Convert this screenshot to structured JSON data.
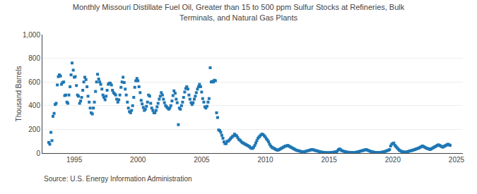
{
  "chart_data": {
    "type": "scatter",
    "title": "Monthly Missouri Distillate Fuel Oil, Greater than 15 to 500 ppm Sulfur Stocks at Refineries, Bulk\nTerminals, and Natural Gas Plants",
    "ylabel": "Thousand Barrels",
    "annotations": [
      "Source: U.S. Energy Information Administration"
    ],
    "marker": "square",
    "grid": "y",
    "xlim": [
      1992.5,
      2025.5
    ],
    "xticks": [
      1995,
      2000,
      2005,
      2010,
      2015,
      2020,
      2025
    ],
    "ylim": [
      0,
      1000
    ],
    "yticks": [
      0,
      200,
      400,
      600,
      800,
      {
        "value": 1000,
        "label": "1,000"
      }
    ],
    "x": [
      1993.0,
      1993.08,
      1993.17,
      1993.25,
      1993.33,
      1993.42,
      1993.5,
      1993.58,
      1993.67,
      1993.75,
      1993.83,
      1993.92,
      1994.0,
      1994.08,
      1994.17,
      1994.25,
      1994.33,
      1994.42,
      1994.5,
      1994.58,
      1994.67,
      1994.75,
      1994.83,
      1994.92,
      1995.0,
      1995.08,
      1995.17,
      1995.25,
      1995.33,
      1995.42,
      1995.5,
      1995.58,
      1995.67,
      1995.75,
      1995.83,
      1995.92,
      1996.0,
      1996.08,
      1996.17,
      1996.25,
      1996.33,
      1996.42,
      1996.5,
      1996.58,
      1996.67,
      1996.75,
      1996.83,
      1996.92,
      1997.0,
      1997.08,
      1997.17,
      1997.25,
      1997.33,
      1997.42,
      1997.5,
      1997.58,
      1997.67,
      1997.75,
      1997.83,
      1997.92,
      1998.0,
      1998.08,
      1998.17,
      1998.25,
      1998.33,
      1998.42,
      1998.5,
      1998.58,
      1998.67,
      1998.75,
      1998.83,
      1998.92,
      1999.0,
      1999.08,
      1999.17,
      1999.25,
      1999.33,
      1999.42,
      1999.5,
      1999.58,
      1999.67,
      1999.75,
      1999.83,
      1999.92,
      2000.0,
      2000.08,
      2000.17,
      2000.25,
      2000.33,
      2000.42,
      2000.5,
      2000.58,
      2000.67,
      2000.75,
      2000.83,
      2000.92,
      2001.0,
      2001.08,
      2001.17,
      2001.25,
      2001.33,
      2001.42,
      2001.5,
      2001.58,
      2001.67,
      2001.75,
      2001.83,
      2001.92,
      2002.0,
      2002.08,
      2002.17,
      2002.25,
      2002.33,
      2002.42,
      2002.5,
      2002.58,
      2002.67,
      2002.75,
      2002.83,
      2002.92,
      2003.0,
      2003.08,
      2003.17,
      2003.25,
      2003.33,
      2003.42,
      2003.5,
      2003.58,
      2003.67,
      2003.75,
      2003.83,
      2003.92,
      2004.0,
      2004.08,
      2004.17,
      2004.25,
      2004.33,
      2004.42,
      2004.5,
      2004.58,
      2004.67,
      2004.75,
      2004.83,
      2004.92,
      2005.0,
      2005.08,
      2005.17,
      2005.25,
      2005.33,
      2005.42,
      2005.5,
      2005.58,
      2005.67,
      2005.75,
      2005.83,
      2005.92,
      2006.0,
      2006.08,
      2006.17,
      2006.25,
      2006.33,
      2006.42,
      2006.5,
      2006.58,
      2006.67,
      2006.75,
      2006.83,
      2006.92,
      2007.0,
      2007.08,
      2007.17,
      2007.25,
      2007.33,
      2007.42,
      2007.5,
      2007.58,
      2007.67,
      2007.75,
      2007.83,
      2007.92,
      2008.0,
      2008.08,
      2008.17,
      2008.25,
      2008.33,
      2008.42,
      2008.5,
      2008.58,
      2008.67,
      2008.75,
      2008.83,
      2008.92,
      2009.0,
      2009.08,
      2009.17,
      2009.25,
      2009.33,
      2009.42,
      2009.5,
      2009.58,
      2009.67,
      2009.75,
      2009.83,
      2009.92,
      2010.0,
      2010.08,
      2010.17,
      2010.25,
      2010.33,
      2010.42,
      2010.5,
      2010.58,
      2010.67,
      2010.75,
      2010.83,
      2010.92,
      2011.0,
      2011.08,
      2011.17,
      2011.25,
      2011.33,
      2011.42,
      2011.5,
      2011.58,
      2011.67,
      2011.75,
      2011.83,
      2011.92,
      2012.0,
      2012.08,
      2012.17,
      2012.25,
      2012.33,
      2012.42,
      2012.5,
      2012.58,
      2012.67,
      2012.75,
      2012.83,
      2012.92,
      2013.0,
      2013.08,
      2013.17,
      2013.25,
      2013.33,
      2013.42,
      2013.5,
      2013.58,
      2013.67,
      2013.75,
      2013.83,
      2013.92,
      2014.0,
      2014.08,
      2014.17,
      2014.25,
      2014.33,
      2014.42,
      2014.5,
      2014.58,
      2014.67,
      2014.75,
      2014.83,
      2014.92,
      2015.0,
      2015.08,
      2015.17,
      2015.25,
      2015.33,
      2015.42,
      2015.5,
      2015.58,
      2015.67,
      2015.75,
      2015.83,
      2015.92,
      2016.0,
      2016.08,
      2016.17,
      2016.25,
      2016.33,
      2016.42,
      2016.5,
      2016.58,
      2016.67,
      2016.75,
      2016.83,
      2016.92,
      2017.0,
      2017.08,
      2017.17,
      2017.25,
      2017.33,
      2017.42,
      2017.5,
      2017.58,
      2017.67,
      2017.75,
      2017.83,
      2017.92,
      2018.0,
      2018.08,
      2018.17,
      2018.25,
      2018.33,
      2018.42,
      2018.5,
      2018.58,
      2018.67,
      2018.75,
      2018.83,
      2018.92,
      2019.0,
      2019.08,
      2019.17,
      2019.25,
      2019.33,
      2019.42,
      2019.5,
      2019.58,
      2019.67,
      2019.75,
      2019.83,
      2019.92,
      2020.0,
      2020.08,
      2020.17,
      2020.25,
      2020.33,
      2020.42,
      2020.5,
      2020.58,
      2020.67,
      2020.75,
      2020.83,
      2020.92,
      2021.0,
      2021.08,
      2021.17,
      2021.25,
      2021.33,
      2021.42,
      2021.5,
      2021.58,
      2021.67,
      2021.75,
      2021.83,
      2021.92,
      2022.0,
      2022.08,
      2022.17,
      2022.25,
      2022.33,
      2022.42,
      2022.5,
      2022.58,
      2022.67,
      2022.75,
      2022.83,
      2022.92,
      2023.0,
      2023.08,
      2023.17,
      2023.25,
      2023.33,
      2023.42,
      2023.5,
      2023.58,
      2023.67,
      2023.75,
      2023.83,
      2023.92,
      2024.0,
      2024.08,
      2024.17,
      2024.25,
      2024.33,
      2024.42,
      2024.5
    ],
    "values": [
      90,
      75,
      175,
      105,
      310,
      335,
      410,
      420,
      575,
      645,
      660,
      650,
      580,
      595,
      600,
      485,
      490,
      430,
      420,
      490,
      560,
      660,
      760,
      700,
      640,
      645,
      570,
      490,
      480,
      420,
      440,
      470,
      530,
      600,
      640,
      620,
      560,
      480,
      430,
      380,
      340,
      330,
      380,
      430,
      520,
      600,
      665,
      625,
      600,
      580,
      540,
      490,
      470,
      450,
      480,
      530,
      580,
      590,
      590,
      575,
      530,
      510,
      500,
      490,
      455,
      430,
      450,
      490,
      555,
      600,
      640,
      595,
      540,
      490,
      430,
      380,
      350,
      340,
      360,
      400,
      470,
      555,
      610,
      630,
      610,
      560,
      510,
      445,
      415,
      385,
      360,
      370,
      395,
      430,
      490,
      480,
      420,
      380,
      360,
      340,
      340,
      360,
      390,
      420,
      455,
      480,
      510,
      490,
      455,
      425,
      400,
      390,
      380,
      370,
      380,
      400,
      440,
      485,
      525,
      505,
      455,
      425,
      240,
      380,
      370,
      400,
      430,
      470,
      515,
      545,
      560,
      540,
      490,
      455,
      425,
      410,
      425,
      455,
      480,
      510,
      540,
      560,
      580,
      560,
      515,
      460,
      430,
      390,
      380,
      395,
      430,
      460,
      720,
      600,
      605,
      600,
      615,
      610,
      340,
      300,
      195,
      190,
      175,
      150,
      125,
      95,
      80,
      80,
      100,
      100,
      110,
      120,
      130,
      140,
      145,
      160,
      150,
      145,
      130,
      115,
      110,
      100,
      90,
      85,
      80,
      75,
      70,
      65,
      60,
      55,
      45,
      40,
      40,
      50,
      65,
      85,
      105,
      125,
      135,
      145,
      155,
      160,
      155,
      145,
      135,
      120,
      110,
      95,
      75,
      60,
      50,
      45,
      40,
      35,
      30,
      25,
      25,
      30,
      35,
      40,
      45,
      50,
      55,
      60,
      60,
      65,
      60,
      55,
      50,
      45,
      40,
      35,
      30,
      25,
      22,
      20,
      18,
      15,
      12,
      10,
      10,
      12,
      15,
      18,
      20,
      22,
      25,
      28,
      30,
      28,
      25,
      22,
      20,
      18,
      15,
      12,
      10,
      8,
      7,
      6,
      5,
      4,
      3,
      3,
      3,
      4,
      5,
      6,
      7,
      8,
      10,
      12,
      20,
      30,
      35,
      28,
      20,
      18,
      15,
      12,
      10,
      8,
      7,
      6,
      5,
      5,
      4,
      4,
      5,
      6,
      8,
      10,
      12,
      15,
      18,
      20,
      22,
      25,
      28,
      30,
      25,
      22,
      18,
      15,
      12,
      10,
      8,
      6,
      5,
      4,
      4,
      3,
      5,
      6,
      8,
      10,
      12,
      15,
      18,
      22,
      25,
      30,
      60,
      75,
      80,
      85,
      65,
      55,
      45,
      35,
      25,
      20,
      15,
      12,
      10,
      8,
      8,
      10,
      12,
      15,
      18,
      20,
      22,
      25,
      28,
      30,
      35,
      38,
      40,
      45,
      50,
      55,
      60,
      55,
      50,
      45,
      40,
      38,
      35,
      30,
      35,
      40,
      45,
      50,
      55,
      60,
      65,
      70,
      65,
      60,
      55,
      50,
      55,
      60,
      65,
      70,
      75,
      70,
      65
    ]
  }
}
